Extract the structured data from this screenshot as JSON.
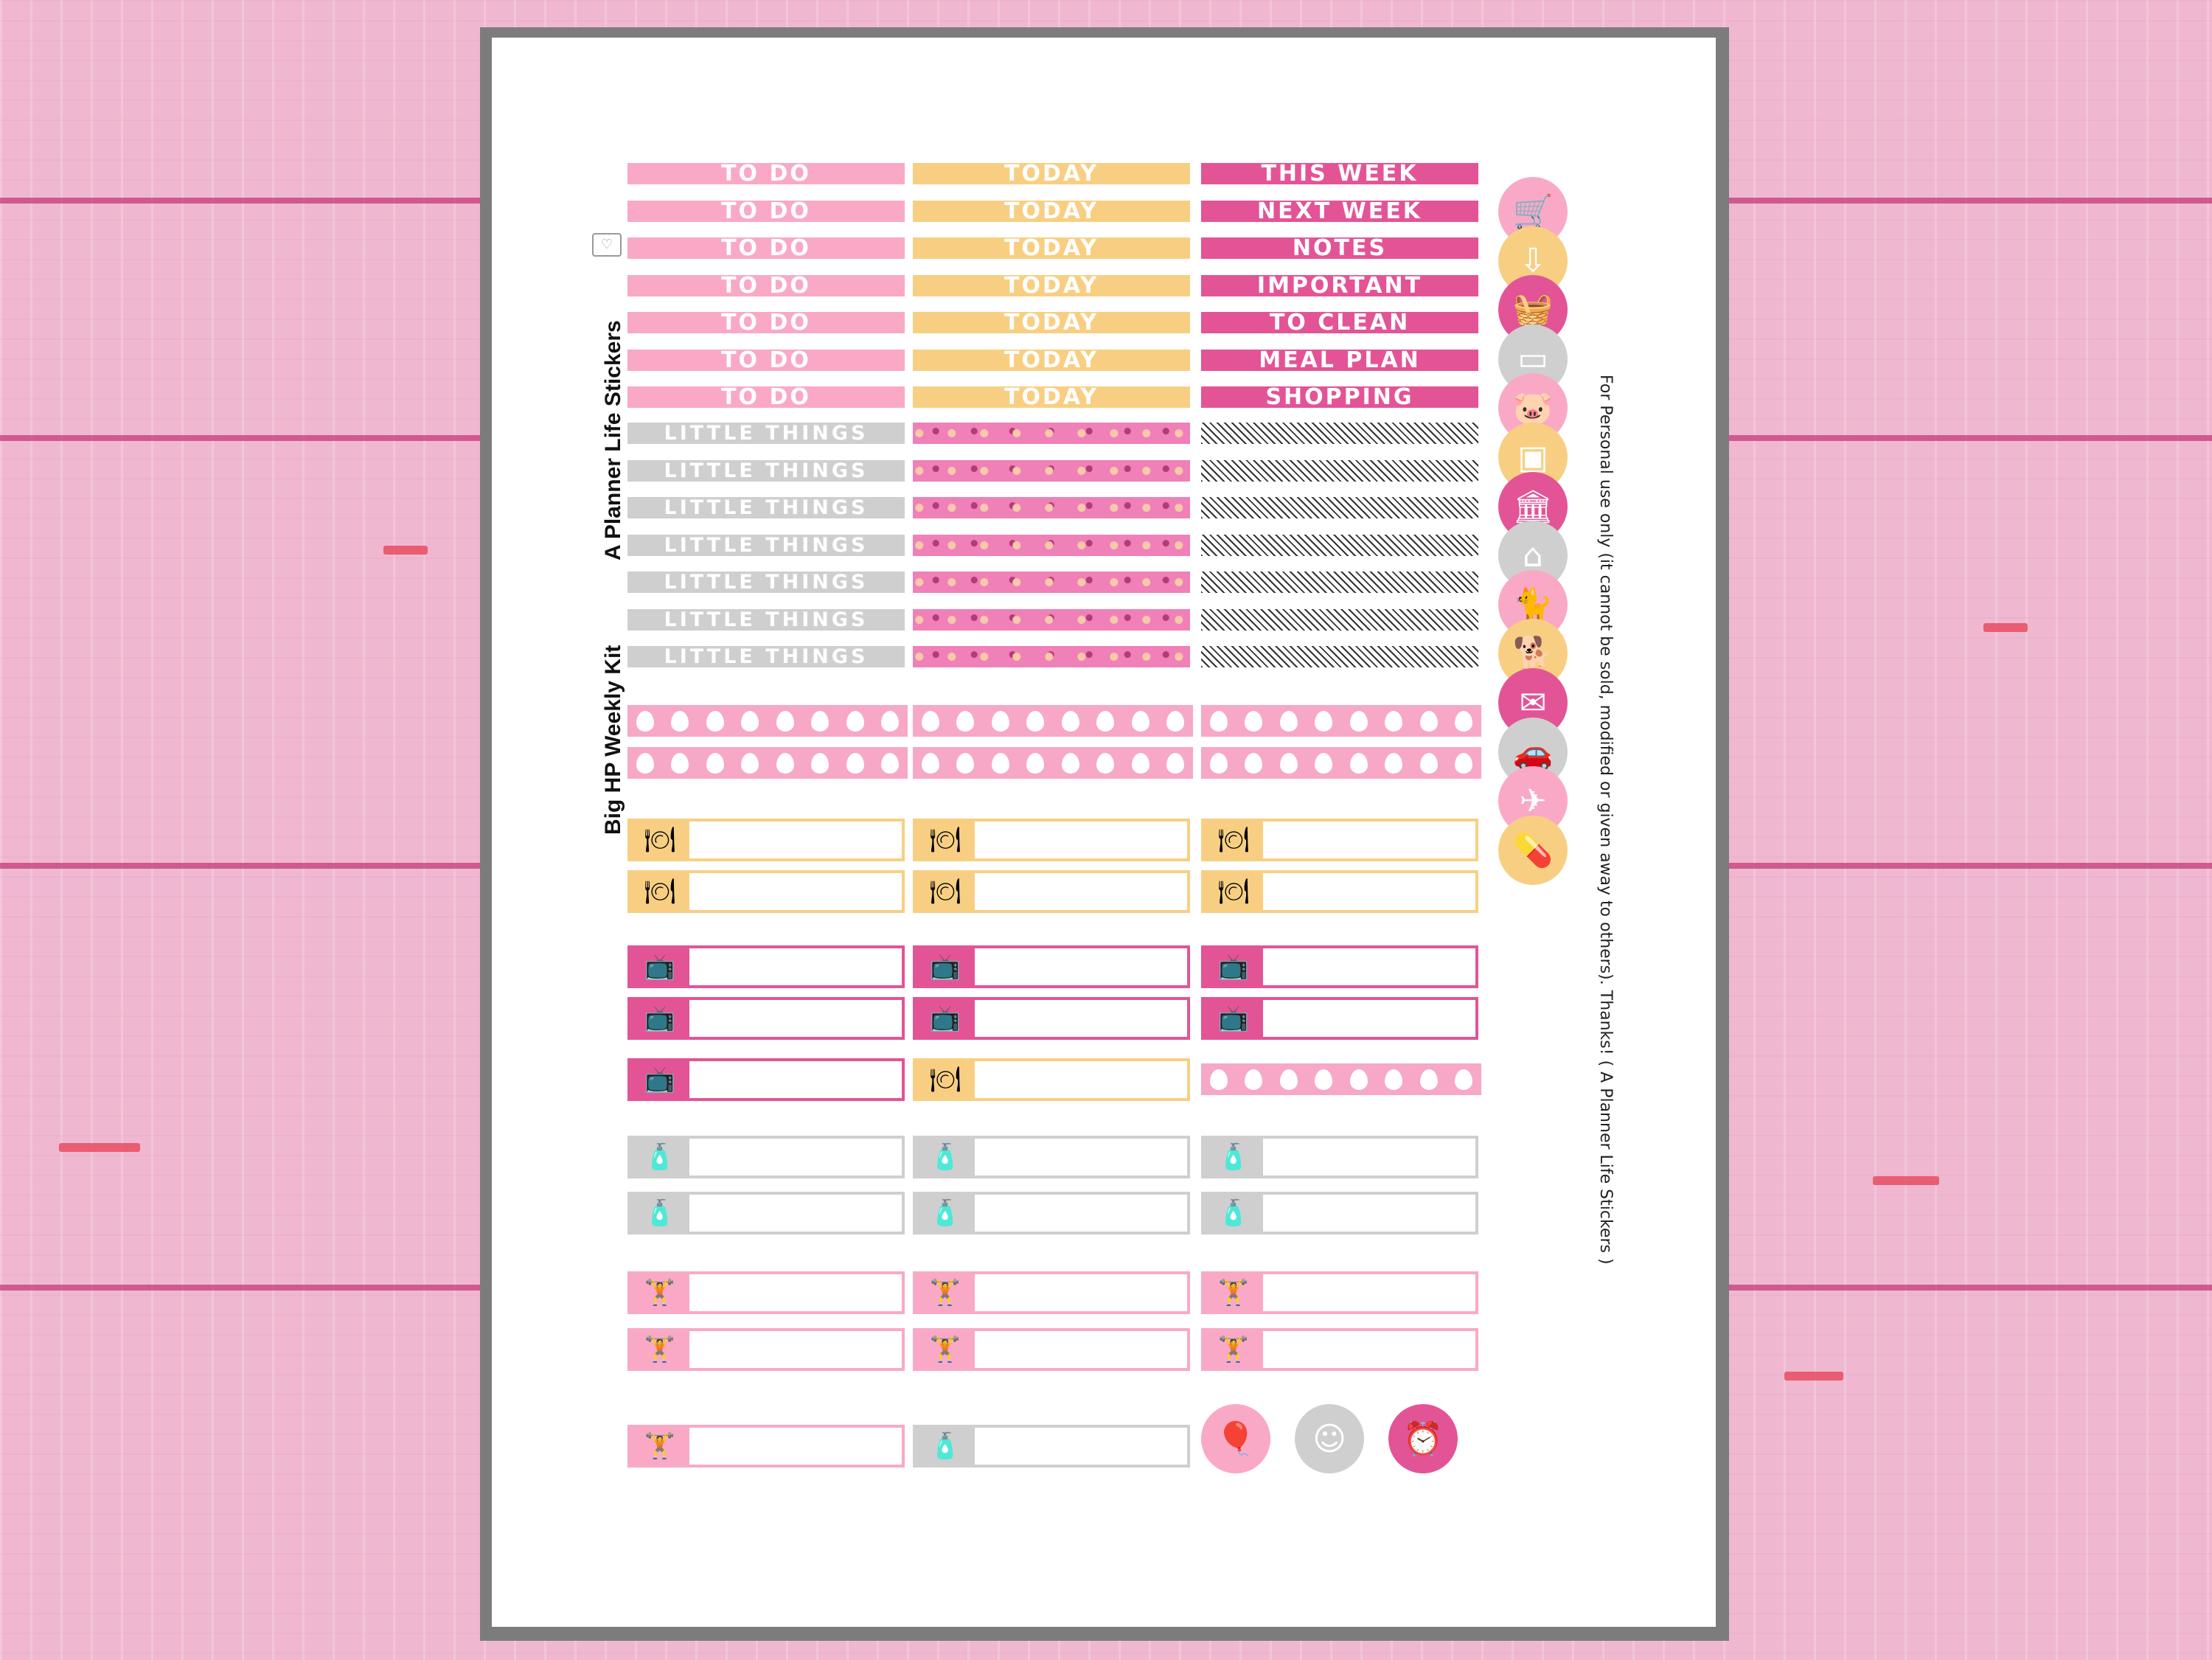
{
  "background": {
    "color": "#efb8d0",
    "accent": "#c6397a"
  },
  "sheet": {
    "title_line1": "Big HP Weekly Kit",
    "title_line2": "A Planner Life Stickers",
    "notice": "For Personal use only (it cannot be sold, modified or given away to others). Thanks! ( A Planner Life Stickers )"
  },
  "labels": {
    "col1": [
      "TO DO",
      "TO DO",
      "TO DO",
      "TO DO",
      "TO DO",
      "TO DO",
      "TO DO"
    ],
    "col2": [
      "TODAY",
      "TODAY",
      "TODAY",
      "TODAY",
      "TODAY",
      "TODAY",
      "TODAY"
    ],
    "col3": [
      "THIS WEEK",
      "NEXT WEEK",
      "NOTES",
      "IMPORTANT",
      "TO CLEAN",
      "MEAL PLAN",
      "SHOPPING"
    ],
    "little": [
      "LITTLE THINGS",
      "LITTLE THINGS",
      "LITTLE THINGS",
      "LITTLE THINGS",
      "LITTLE THINGS",
      "LITTLE THINGS",
      "LITTLE THINGS"
    ]
  },
  "colors": {
    "pink": "#f9a9c6",
    "orange": "#f8cf82",
    "magenta": "#e35496",
    "gray": "#cfcfcf"
  },
  "icons": {
    "meal": "🍽",
    "tv": "📺",
    "spray": "🧴",
    "weights": "🏋",
    "side": [
      "cart-icon",
      "download-cart-icon",
      "basket-icon",
      "credit-card-icon",
      "piggy-bank-icon",
      "wallet-icon",
      "bank-icon",
      "house-icon",
      "cat-icon",
      "dog-icon",
      "mail-icon",
      "car-icon",
      "airplane-icon",
      "pill-icon"
    ],
    "bottom": [
      "balloon-icon",
      "smiley-icon",
      "alarm-clock-icon"
    ]
  }
}
